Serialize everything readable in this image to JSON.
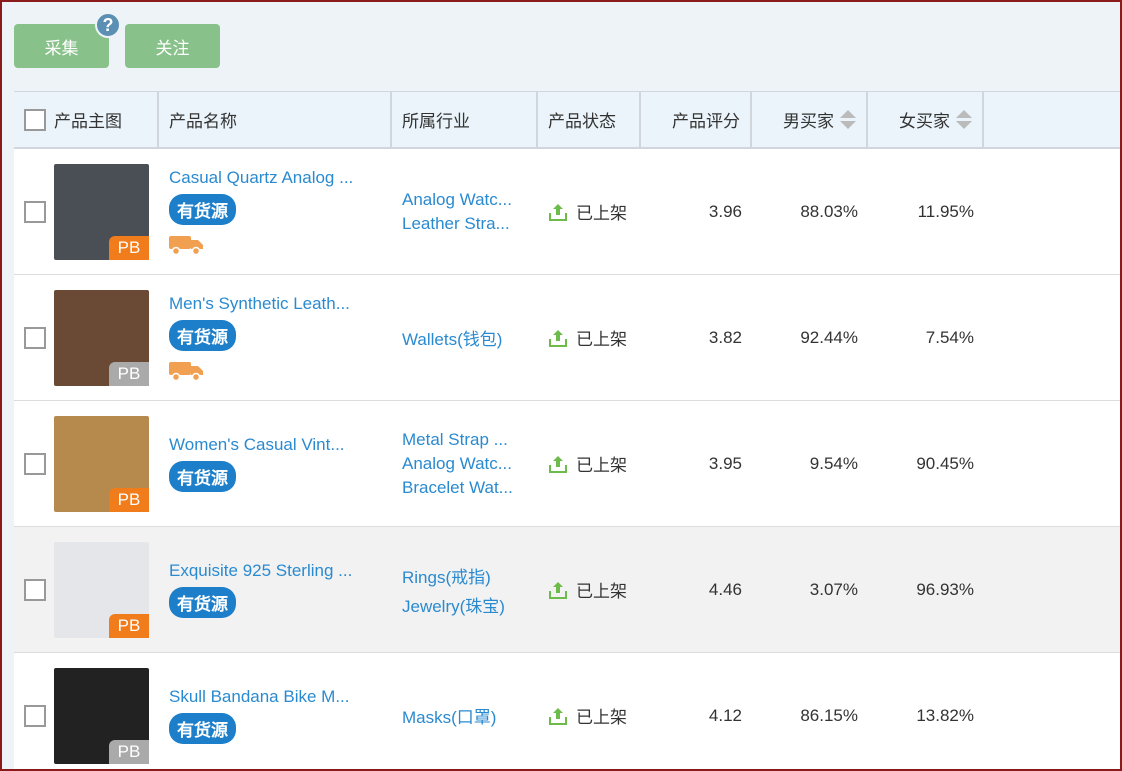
{
  "toolbar": {
    "collect_label": "采集",
    "help_icon": "?",
    "follow_label": "关注"
  },
  "table": {
    "headers": [
      "产品主图",
      "产品名称",
      "所属行业",
      "产品状态",
      "产品评分",
      "男买家",
      "女买家"
    ],
    "rows": [
      {
        "name": "Casual Quartz Analog ...",
        "tag": "有货源",
        "truck": true,
        "pb": "PB",
        "pb_color": "#f07c1c",
        "img_color": "#4a4f55",
        "industries": [
          "Analog Watc...",
          "Leather Stra..."
        ],
        "status": "已上架",
        "score": "3.96",
        "male": "88.03%",
        "female": "11.95%"
      },
      {
        "name": "Men's Synthetic Leath...",
        "tag": "有货源",
        "truck": true,
        "pb": "PB",
        "pb_color": "#aaaaaa",
        "img_color": "#6b4a35",
        "industries": [
          "Wallets(钱包)"
        ],
        "status": "已上架",
        "score": "3.82",
        "male": "92.44%",
        "female": "7.54%"
      },
      {
        "name": "Women's Casual Vint...",
        "tag": "有货源",
        "truck": false,
        "pb": "PB",
        "pb_color": "#f07c1c",
        "img_color": "#b58a4c",
        "industries": [
          "Metal Strap ...",
          "Analog Watc...",
          "Bracelet Wat..."
        ],
        "status": "已上架",
        "score": "3.95",
        "male": "9.54%",
        "female": "90.45%"
      },
      {
        "name": "Exquisite 925 Sterling ...",
        "tag": "有货源",
        "truck": false,
        "pb": "PB",
        "pb_color": "#f07c1c",
        "img_color": "#e4e6ea",
        "industries": [
          "Rings(戒指)",
          "Jewelry(珠宝)"
        ],
        "status": "已上架",
        "score": "4.46",
        "male": "3.07%",
        "female": "96.93%"
      },
      {
        "name": "Skull Bandana Bike M...",
        "tag": "有货源",
        "truck": false,
        "pb": "PB",
        "pb_color": "#aaaaaa",
        "img_color": "#222222",
        "industries": [
          "Masks(口罩)"
        ],
        "status": "已上架",
        "score": "4.12",
        "male": "86.15%",
        "female": "13.82%"
      }
    ]
  },
  "colors": {
    "accent": "#2a8ad0",
    "button": "#88c28a",
    "status_icon": "#6dbb4a",
    "truck": "#f0a050"
  }
}
